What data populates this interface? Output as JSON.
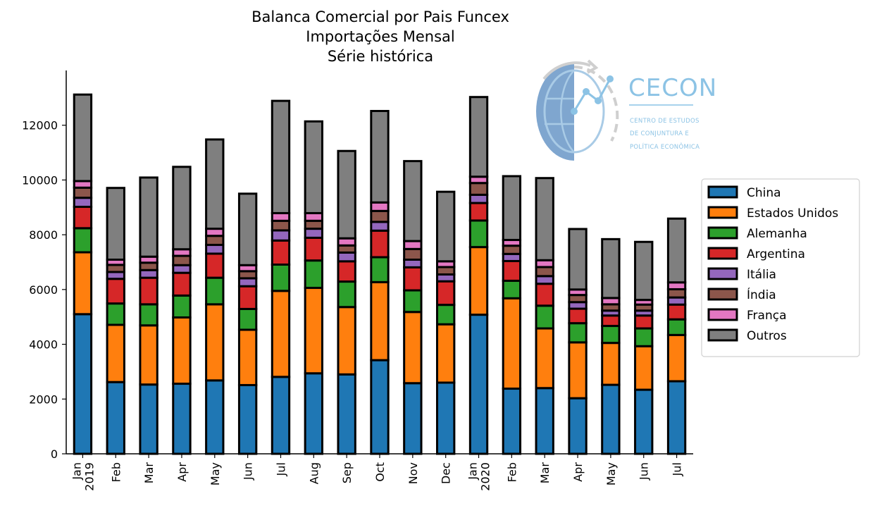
{
  "chart_data": {
    "type": "bar",
    "stacked": true,
    "title_lines": [
      "Balanca Comercial por Pais Funcex",
      "Importações Mensal",
      "Série histórica"
    ],
    "xlabel": "",
    "ylabel": "",
    "ylim": [
      0,
      14000
    ],
    "yticks": [
      0,
      2000,
      4000,
      6000,
      8000,
      10000,
      12000
    ],
    "grid": false,
    "legend_placement": "right-center",
    "categories": [
      "Jan\n2019",
      "Feb",
      "Mar",
      "Apr",
      "May",
      "Jun",
      "Jul",
      "Aug",
      "Sep",
      "Oct",
      "Nov",
      "Dec",
      "Jan\n2020",
      "Feb",
      "Mar",
      "Apr",
      "May",
      "Jun",
      "Jul"
    ],
    "series": [
      {
        "name": "China",
        "color": "#1f77b4",
        "values": [
          5100,
          2620,
          2530,
          2560,
          2680,
          2510,
          2810,
          2940,
          2900,
          3420,
          2580,
          2600,
          5080,
          2380,
          2400,
          2030,
          2520,
          2340,
          2650
        ]
      },
      {
        "name": "Estados Unidos",
        "color": "#ff7f0e",
        "values": [
          2260,
          2090,
          2160,
          2420,
          2780,
          2020,
          3140,
          3120,
          2460,
          2850,
          2600,
          2130,
          2470,
          3300,
          2180,
          2040,
          1530,
          1590,
          1690
        ]
      },
      {
        "name": "Alemanha",
        "color": "#2ca02c",
        "values": [
          880,
          780,
          770,
          800,
          970,
          760,
          960,
          1000,
          930,
          910,
          790,
          710,
          970,
          640,
          830,
          700,
          620,
          650,
          570
        ]
      },
      {
        "name": "Argentina",
        "color": "#d62728",
        "values": [
          780,
          900,
          970,
          830,
          880,
          830,
          880,
          830,
          740,
          970,
          840,
          860,
          640,
          720,
          800,
          530,
          380,
          470,
          540
        ]
      },
      {
        "name": "Itália",
        "color": "#9467bd",
        "values": [
          330,
          250,
          280,
          280,
          320,
          290,
          370,
          330,
          320,
          320,
          280,
          250,
          300,
          260,
          280,
          240,
          180,
          180,
          260
        ]
      },
      {
        "name": "Índia",
        "color": "#8c564b",
        "values": [
          370,
          260,
          270,
          340,
          330,
          260,
          350,
          290,
          260,
          400,
          390,
          270,
          430,
          300,
          330,
          260,
          230,
          220,
          300
        ]
      },
      {
        "name": "França",
        "color": "#e377c2",
        "values": [
          240,
          190,
          220,
          240,
          260,
          220,
          280,
          280,
          260,
          310,
          290,
          210,
          230,
          210,
          250,
          200,
          230,
          170,
          250
        ]
      },
      {
        "name": "Outros",
        "color": "#7f7f7f",
        "values": [
          3160,
          2620,
          2890,
          3010,
          3260,
          2610,
          4100,
          3350,
          3190,
          3340,
          2920,
          2540,
          2910,
          2330,
          3000,
          2210,
          2150,
          2120,
          2330
        ]
      }
    ]
  },
  "logo": {
    "name": "CECON",
    "subtitle_lines": [
      "CENTRO DE ESTUDOS",
      "DE CONJUNTURA E",
      "POLÍTICA ECONÔMICA"
    ]
  }
}
